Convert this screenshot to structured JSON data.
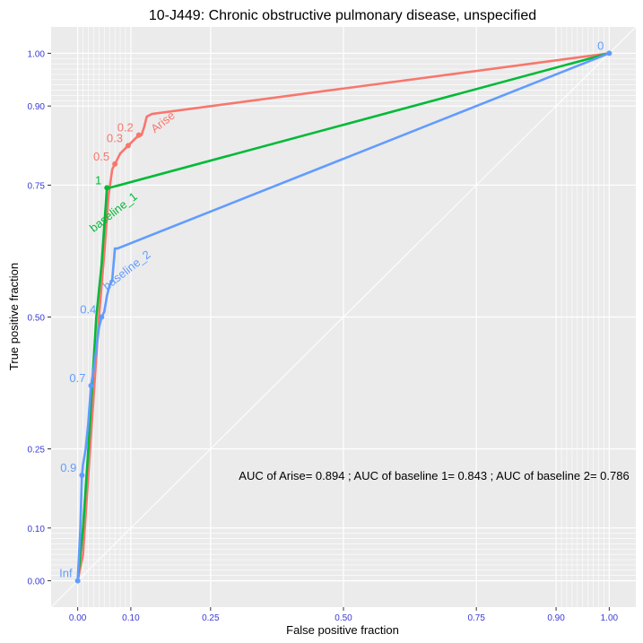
{
  "chart_data": {
    "type": "line",
    "title": "10-J449: Chronic obstructive pulmonary disease, unspecified",
    "xlabel": "False positive fraction",
    "ylabel": "True positive fraction",
    "xlim": [
      -0.05,
      1.05
    ],
    "ylim": [
      -0.05,
      1.05
    ],
    "x_ticks": [
      0.0,
      0.1,
      0.25,
      0.5,
      0.75,
      0.9,
      1.0
    ],
    "x_tick_labels": [
      "0.00",
      "0.10",
      "0.25",
      "0.50",
      "0.75",
      "0.90",
      "1.00"
    ],
    "y_ticks": [
      0.0,
      0.1,
      0.25,
      0.5,
      0.75,
      0.9,
      1.0
    ],
    "y_tick_labels": [
      "0.00",
      "0.10",
      "0.25",
      "0.50",
      "0.75",
      "0.90",
      "1.00"
    ],
    "minor_grid": [
      0.01,
      0.02,
      0.03,
      0.04,
      0.05,
      0.06,
      0.07,
      0.08,
      0.09,
      0.91,
      0.92,
      0.93,
      0.94,
      0.95,
      0.96,
      0.97,
      0.98,
      0.99
    ],
    "grid": true,
    "legend": "none",
    "annotation": "AUC of Arise= 0.894 ; AUC of baseline 1= 0.843 ; AUC of baseline 2= 0.786",
    "series": [
      {
        "name": "Arise",
        "color": "#F8766D",
        "points": [
          [
            0.0,
            0.0
          ],
          [
            0.01,
            0.05
          ],
          [
            0.02,
            0.2
          ],
          [
            0.03,
            0.35
          ],
          [
            0.04,
            0.5
          ],
          [
            0.05,
            0.62
          ],
          [
            0.058,
            0.73
          ],
          [
            0.065,
            0.78
          ],
          [
            0.07,
            0.79
          ],
          [
            0.075,
            0.8
          ],
          [
            0.08,
            0.81
          ],
          [
            0.09,
            0.82
          ],
          [
            0.1,
            0.83
          ],
          [
            0.105,
            0.835
          ],
          [
            0.11,
            0.84
          ],
          [
            0.12,
            0.845
          ],
          [
            0.125,
            0.86
          ],
          [
            0.13,
            0.88
          ],
          [
            0.14,
            0.885
          ],
          [
            1.0,
            1.0
          ]
        ],
        "thresholds": [
          {
            "label": "0.2",
            "x": 0.115,
            "y": 0.845
          },
          {
            "label": "0.3",
            "x": 0.095,
            "y": 0.825
          },
          {
            "label": "0.5",
            "x": 0.07,
            "y": 0.79
          }
        ]
      },
      {
        "name": "baseline_1",
        "color": "#00BA38",
        "points": [
          [
            0.0,
            0.0
          ],
          [
            0.01,
            0.1
          ],
          [
            0.02,
            0.25
          ],
          [
            0.035,
            0.5
          ],
          [
            0.045,
            0.6
          ],
          [
            0.055,
            0.745
          ],
          [
            0.06,
            0.745
          ],
          [
            1.0,
            1.0
          ]
        ],
        "thresholds": [
          {
            "label": "1",
            "x": 0.055,
            "y": 0.745
          }
        ]
      },
      {
        "name": "baseline_2",
        "color": "#619CFF",
        "points": [
          [
            0.0,
            0.0
          ],
          [
            0.005,
            0.1
          ],
          [
            0.008,
            0.2
          ],
          [
            0.01,
            0.22
          ],
          [
            0.015,
            0.25
          ],
          [
            0.02,
            0.3
          ],
          [
            0.025,
            0.37
          ],
          [
            0.03,
            0.4
          ],
          [
            0.035,
            0.44
          ],
          [
            0.04,
            0.48
          ],
          [
            0.045,
            0.5
          ],
          [
            0.05,
            0.51
          ],
          [
            0.055,
            0.54
          ],
          [
            0.06,
            0.56
          ],
          [
            0.065,
            0.57
          ],
          [
            0.07,
            0.63
          ],
          [
            0.075,
            0.63
          ],
          [
            1.0,
            1.0
          ]
        ],
        "thresholds": [
          {
            "label": "Inf",
            "x": 0.0,
            "y": 0.0
          },
          {
            "label": "0.9",
            "x": 0.008,
            "y": 0.2
          },
          {
            "label": "0.7",
            "x": 0.025,
            "y": 0.37
          },
          {
            "label": "0.4",
            "x": 0.045,
            "y": 0.5
          },
          {
            "label": "0",
            "x": 1.0,
            "y": 1.0
          }
        ]
      }
    ],
    "series_labels": [
      {
        "text": "Arise",
        "series": "Arise"
      },
      {
        "text": "baseline_1",
        "series": "baseline_1"
      },
      {
        "text": "baseline_2",
        "series": "baseline_2"
      }
    ]
  }
}
